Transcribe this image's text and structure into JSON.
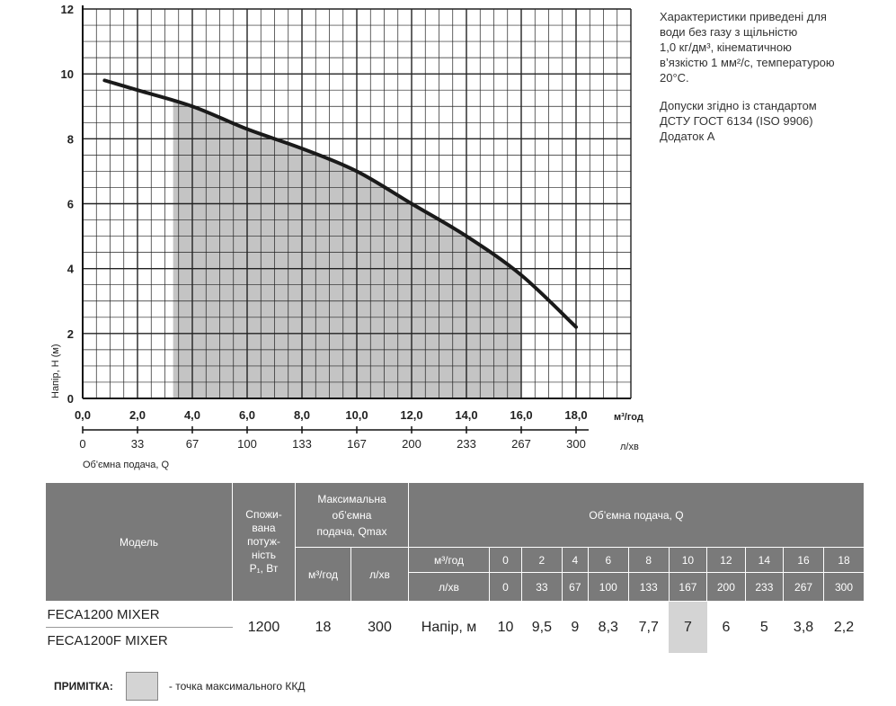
{
  "chart_data": {
    "type": "line",
    "xlabel": "м³/год",
    "x2label": "л/хв",
    "ylabel": "Напір, H (м)",
    "caption": "Об'ємна подача, Q",
    "xlim": [
      0,
      20
    ],
    "ylim": [
      0,
      12
    ],
    "grid": true,
    "x_ticks": [
      "0,0",
      "2,0",
      "4,0",
      "6,0",
      "8,0",
      "10,0",
      "12,0",
      "14,0",
      "16,0",
      "18,0"
    ],
    "x2_ticks": [
      "0",
      "33",
      "67",
      "100",
      "133",
      "167",
      "200",
      "233",
      "267",
      "300"
    ],
    "y_ticks": [
      "0",
      "2",
      "4",
      "6",
      "8",
      "10",
      "12"
    ],
    "series": [
      {
        "x": [
          0.8,
          2,
          4,
          6,
          8,
          10,
          12,
          14,
          16,
          18
        ],
        "y": [
          9.8,
          9.5,
          9,
          8.3,
          7.7,
          7,
          6,
          5,
          3.8,
          2.2
        ]
      }
    ],
    "shaded_range_x": [
      3.3,
      16
    ],
    "colors": {
      "curve": "#1a1a1a",
      "shade": "#c4c4c4",
      "grid": "#222222"
    }
  },
  "notes": {
    "conditions": "Характеристики приведені для\nводи без газу з щільністю\n1,0 кг/дм³, кінематичною\nв’язкістю 1 мм²/с, температурою\n20°С.",
    "tolerance": "Допуски згідно із стандартом\nДСТУ ГОСТ 6134 (ISO 9906)\nДодаток А"
  },
  "table": {
    "header_model": "Модель",
    "header_power": "Спожи-\nвана\nпотуж-\nність\nP₁, Вт",
    "header_qmax": "Максимальна\nоб’ємна\nподача, Qmax",
    "header_q": "Об’ємна подача, Q",
    "unit_m3": "м³/год",
    "unit_l": "л/хв",
    "q_m3": [
      "0",
      "2",
      "4",
      "6",
      "8",
      "10",
      "12",
      "14",
      "16",
      "18"
    ],
    "q_l": [
      "0",
      "33",
      "67",
      "100",
      "133",
      "167",
      "200",
      "233",
      "267",
      "300"
    ],
    "models": [
      "FECA1200 MIXER",
      "FECA1200F MIXER"
    ],
    "power": "1200",
    "qmax_m3": "18",
    "qmax_l": "300",
    "head_label": "Напір, м",
    "heads": [
      "10",
      "9,5",
      "9",
      "8,3",
      "7,7",
      "7",
      "6",
      "5",
      "3,8",
      "2,2"
    ],
    "highlight_index": 5
  },
  "footnote": {
    "label": "ПРИМІТКА:",
    "text": "- точка максимального ККД"
  }
}
